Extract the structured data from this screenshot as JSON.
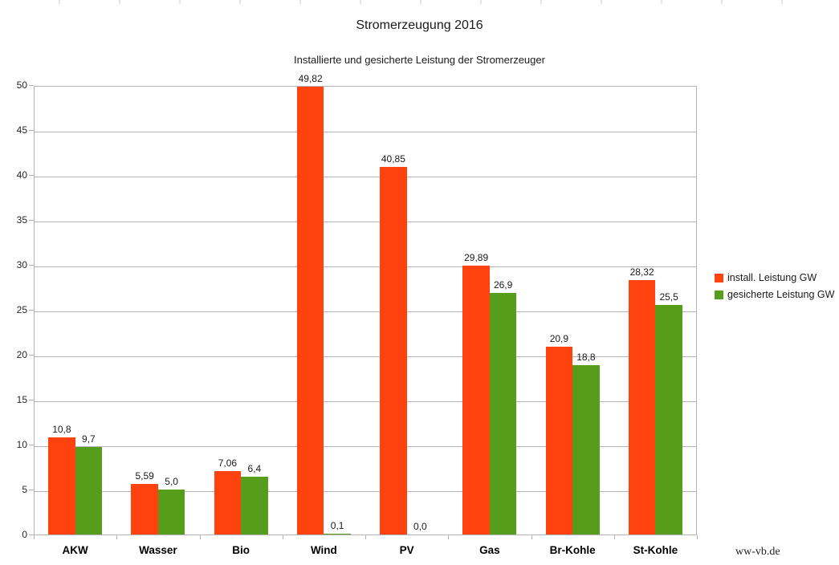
{
  "title": "Stromerzeugung 2016",
  "subtitle": "Installierte und gesicherte Leistung der Stromerzeuger",
  "watermark": "ww-vb.de",
  "colors": {
    "installed_bar": "#FF420E",
    "secured_bar": "#579D1C",
    "grid": "#B3B3B3",
    "text": "#1A1A1A"
  },
  "legend": [
    {
      "label": "install. Leistung GW",
      "color": "#FF420E"
    },
    {
      "label": "gesicherte Leistung GW",
      "color": "#579D1C"
    }
  ],
  "chart_data": {
    "type": "bar",
    "title": "Stromerzeugung 2016",
    "subtitle": "Installierte und gesicherte Leistung der Stromerzeuger",
    "categories": [
      "AKW",
      "Wasser",
      "Bio",
      "Wind",
      "PV",
      "Gas",
      "Br-Kohle",
      "St-Kohle"
    ],
    "series": [
      {
        "name": "install. Leistung GW",
        "color": "#FF420E",
        "values": [
          10.8,
          5.59,
          7.06,
          49.82,
          40.85,
          29.89,
          20.9,
          28.32
        ],
        "labels": [
          "10,8",
          "5,59",
          "7,06",
          "49,82",
          "40,85",
          "29,89",
          "20,9",
          "28,32"
        ]
      },
      {
        "name": "gesicherte Leistung GW",
        "color": "#579D1C",
        "values": [
          9.7,
          5.0,
          6.4,
          0.1,
          0.0,
          26.9,
          18.8,
          25.5
        ],
        "labels": [
          "9,7",
          "5,0",
          "6,4",
          "0,1",
          "0,0",
          "26,9",
          "18,8",
          "25,5"
        ]
      }
    ],
    "xlabel": "",
    "ylabel": "",
    "ylim": [
      0,
      50
    ],
    "ytick_step": 5,
    "yticks": [
      "0",
      "5",
      "10",
      "15",
      "20",
      "25",
      "30",
      "35",
      "40",
      "45",
      "50"
    ],
    "grid": true,
    "legend_position": "right"
  }
}
